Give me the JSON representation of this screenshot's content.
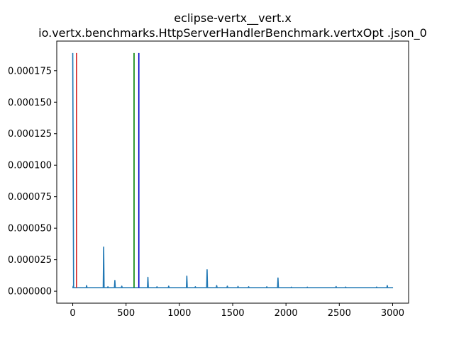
{
  "chart_data": {
    "type": "line",
    "title": "eclipse-vertx__vert.x",
    "subtitle": "io.vertx.benchmarks.HttpServerHandlerBenchmark.vertxOpt .json_0",
    "xlabel": "",
    "ylabel": "",
    "xlim": [
      -150,
      3150
    ],
    "ylim": [
      -9.5e-06,
      0.0001985
    ],
    "x_ticks": [
      0,
      500,
      1000,
      1500,
      2000,
      2500,
      3000
    ],
    "x_tick_labels": [
      "0",
      "500",
      "1000",
      "1500",
      "2000",
      "2500",
      "3000"
    ],
    "y_ticks": [
      0.0,
      2.5e-05,
      5e-05,
      7.5e-05,
      0.0001,
      0.000125,
      0.00015,
      0.000175
    ],
    "y_tick_labels": [
      "0.000000",
      "0.000025",
      "0.000050",
      "0.000075",
      "0.000100",
      "0.000125",
      "0.000150",
      "0.000175"
    ],
    "grid": false,
    "series": [
      {
        "color": "#1f77b4",
        "baseline": 2.8e-06,
        "spikes": [
          {
            "x": 0,
            "y": 0.000189
          },
          {
            "x": 5,
            "y": 4e-06
          },
          {
            "x": 130,
            "y": 4.5e-06
          },
          {
            "x": 290,
            "y": 3.5e-05
          },
          {
            "x": 330,
            "y": 3.5e-06
          },
          {
            "x": 395,
            "y": 8.5e-06
          },
          {
            "x": 460,
            "y": 4e-06
          },
          {
            "x": 705,
            "y": 1.1e-05
          },
          {
            "x": 790,
            "y": 3.5e-06
          },
          {
            "x": 900,
            "y": 4e-06
          },
          {
            "x": 1070,
            "y": 1.2e-05
          },
          {
            "x": 1150,
            "y": 3.5e-06
          },
          {
            "x": 1260,
            "y": 1.7e-05
          },
          {
            "x": 1350,
            "y": 4.5e-06
          },
          {
            "x": 1450,
            "y": 4e-06
          },
          {
            "x": 1550,
            "y": 3.8e-06
          },
          {
            "x": 1650,
            "y": 3.5e-06
          },
          {
            "x": 1820,
            "y": 3.5e-06
          },
          {
            "x": 1925,
            "y": 1.05e-05
          },
          {
            "x": 2050,
            "y": 3.2e-06
          },
          {
            "x": 2200,
            "y": 3.2e-06
          },
          {
            "x": 2470,
            "y": 3.7e-06
          },
          {
            "x": 2560,
            "y": 3.3e-06
          },
          {
            "x": 2850,
            "y": 3.3e-06
          },
          {
            "x": 2950,
            "y": 4.5e-06
          },
          {
            "x": 3000,
            "y": 2.8e-06
          }
        ]
      }
    ],
    "vertical_lines": [
      {
        "x": 35,
        "y0": 2.8e-06,
        "y1": 0.000189,
        "color": "#d62728"
      },
      {
        "x": 575,
        "y0": 2.8e-06,
        "y1": 0.000189,
        "color": "#008000"
      },
      {
        "x": 620,
        "y0": 2.8e-06,
        "y1": 0.000189,
        "color": "#0000cc"
      }
    ]
  }
}
